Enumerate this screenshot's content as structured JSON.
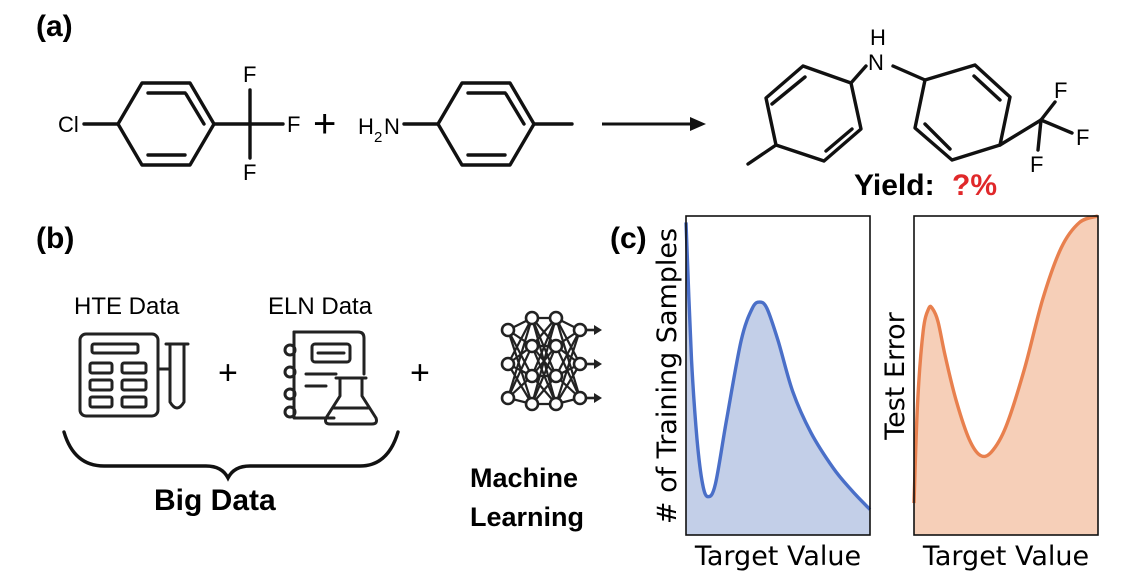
{
  "panel_a": {
    "label": "(a)",
    "reactant1": {
      "substituent_left": "Cl",
      "cf3_f": [
        "F",
        "F",
        "F"
      ]
    },
    "plus": "+",
    "reactant2": {
      "amine_h": "H",
      "amine_sub": "2",
      "amine_n": "N"
    },
    "product": {
      "nh_h": "H",
      "nh_n": "N",
      "cf3_f": [
        "F",
        "F",
        "F"
      ]
    },
    "yield_label": "Yield:",
    "yield_value": "?%",
    "yield_color": "#e0282a"
  },
  "panel_b": {
    "label": "(b)",
    "hte_label": "HTE Data",
    "eln_label": "ELN Data",
    "plus1": "+",
    "plus2": "+",
    "brace_label": "Big Data",
    "ml_line1": "Machine",
    "ml_line2": "Learning",
    "icons": [
      "hte-plate-test-tube-icon",
      "eln-notebook-flask-icon",
      "neural-network-icon"
    ]
  },
  "panel_c": {
    "label": "(c)",
    "chart_data": [
      {
        "type": "area",
        "title": "",
        "xlabel": "Target Value",
        "ylabel": "# of Training Samples",
        "ticks": "none",
        "color": "#4a6fc8",
        "fill": "#c3cfe8",
        "xlim": [
          0,
          1
        ],
        "ylim": [
          0,
          1
        ],
        "x": [
          0.0,
          0.03,
          0.06,
          0.09,
          0.12,
          0.16,
          0.22,
          0.3,
          0.36,
          0.4,
          0.44,
          0.5,
          0.58,
          0.68,
          0.8,
          0.9,
          1.0
        ],
        "y": [
          0.98,
          0.55,
          0.3,
          0.16,
          0.12,
          0.16,
          0.36,
          0.61,
          0.71,
          0.73,
          0.71,
          0.61,
          0.45,
          0.32,
          0.21,
          0.14,
          0.08
        ]
      },
      {
        "type": "area",
        "title": "",
        "xlabel": "Target Value",
        "ylabel": "Test Error",
        "ticks": "none",
        "color": "#e8804e",
        "fill": "#f6cfb8",
        "xlim": [
          0,
          1
        ],
        "ylim": [
          0,
          1
        ],
        "x": [
          0.0,
          0.02,
          0.05,
          0.08,
          0.1,
          0.13,
          0.17,
          0.23,
          0.3,
          0.36,
          0.42,
          0.5,
          0.6,
          0.7,
          0.8,
          0.9,
          1.0
        ],
        "y": [
          0.1,
          0.42,
          0.64,
          0.71,
          0.71,
          0.67,
          0.56,
          0.42,
          0.3,
          0.25,
          0.26,
          0.34,
          0.52,
          0.74,
          0.9,
          0.98,
          1.0
        ]
      }
    ]
  }
}
